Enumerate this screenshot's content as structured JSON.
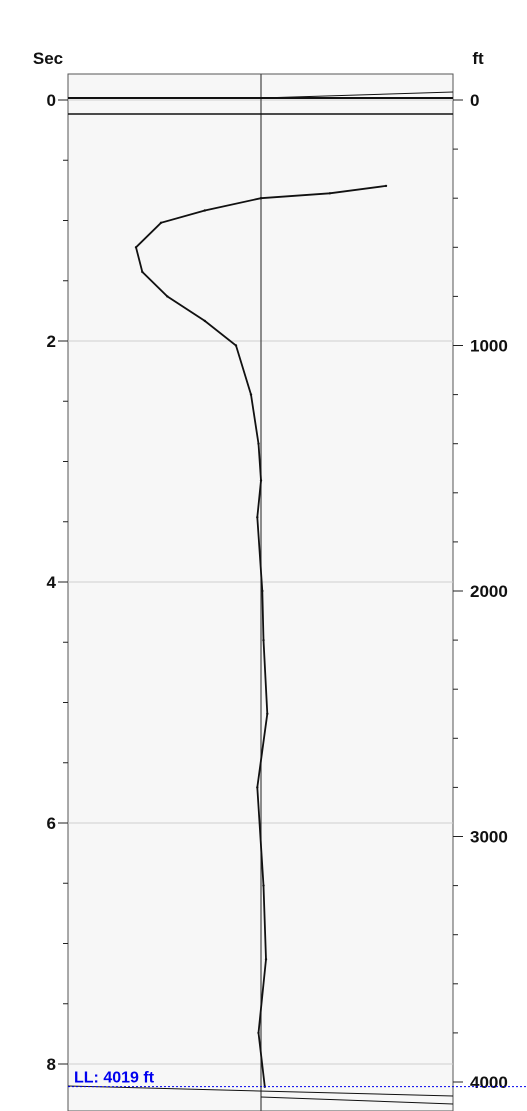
{
  "chart_data": {
    "type": "line",
    "title": "",
    "left_axis": {
      "label": "Sec",
      "range": [
        0,
        8.3
      ],
      "major_ticks": [
        0,
        2,
        4,
        6,
        8
      ],
      "tick_labels": [
        "0",
        "2",
        "4",
        "6",
        "8"
      ],
      "minor_step": 0.5
    },
    "right_axis": {
      "label": "ft",
      "range": [
        0,
        4150
      ],
      "major_ticks": [
        0,
        1000,
        2000,
        3000,
        4000
      ],
      "tick_labels": [
        "0",
        "1000",
        "2000",
        "3000",
        "4000"
      ],
      "minor_step": 200
    },
    "x_range": [
      -1,
      1
    ],
    "grid": true,
    "series": [
      {
        "y_units": "ft",
        "points": [
          {
            "x": 1.0,
            "y": 350
          },
          {
            "x": 0.55,
            "y": 380
          },
          {
            "x": 0.0,
            "y": 400
          },
          {
            "x": -0.45,
            "y": 450
          },
          {
            "x": -0.8,
            "y": 500
          },
          {
            "x": -1.0,
            "y": 600
          },
          {
            "x": -0.95,
            "y": 700
          },
          {
            "x": -0.75,
            "y": 800
          },
          {
            "x": -0.45,
            "y": 900
          },
          {
            "x": -0.2,
            "y": 1000
          },
          {
            "x": -0.08,
            "y": 1200
          },
          {
            "x": -0.02,
            "y": 1400
          },
          {
            "x": 0.0,
            "y": 1550
          },
          {
            "x": -0.03,
            "y": 1700
          },
          {
            "x": 0.01,
            "y": 2000
          },
          {
            "x": 0.02,
            "y": 2200
          },
          {
            "x": 0.05,
            "y": 2500
          },
          {
            "x": -0.03,
            "y": 2800
          },
          {
            "x": 0.02,
            "y": 3200
          },
          {
            "x": 0.04,
            "y": 3500
          },
          {
            "x": -0.02,
            "y": 3800
          },
          {
            "x": 0.03,
            "y": 4019
          }
        ]
      }
    ],
    "annotations": [
      {
        "text": "LL: 4019 ft",
        "y": 4019,
        "y_units": "ft",
        "color": "#0000ee"
      }
    ]
  }
}
